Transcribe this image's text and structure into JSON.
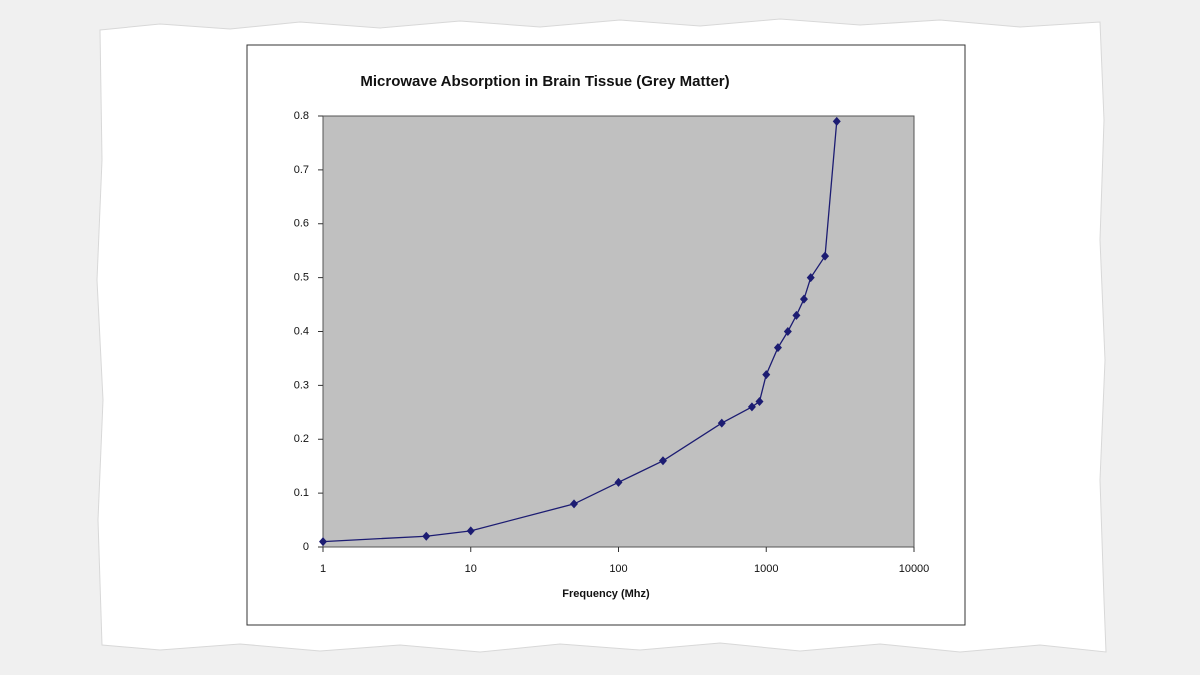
{
  "chart_data": {
    "type": "line",
    "title": "Microwave Absorption in Brain Tissue   (Grey Matter)",
    "x_label": "Frequency (Mhz)",
    "x": [
      1,
      5,
      10,
      50,
      100,
      200,
      500,
      800,
      900,
      1000,
      1200,
      1400,
      1600,
      1800,
      2000,
      2500,
      3000
    ],
    "series": [
      {
        "color": "#1c1c72",
        "values": [
          0.01,
          0.02,
          0.03,
          0.08,
          0.12,
          0.16,
          0.23,
          0.26,
          0.27,
          0.32,
          0.37,
          0.4,
          0.43,
          0.46,
          0.5,
          0.54,
          0.79
        ]
      }
    ],
    "xlim": [
      1,
      10000
    ],
    "xticks": [
      1,
      10,
      100,
      1000,
      10000
    ],
    "x_log": true,
    "ylim": [
      0,
      0.8
    ],
    "yticks": [
      0,
      0.1,
      0.2,
      0.3,
      0.4,
      0.5,
      0.6,
      0.7,
      0.8
    ],
    "plot_background": "#c0c0c0",
    "grid": false
  }
}
